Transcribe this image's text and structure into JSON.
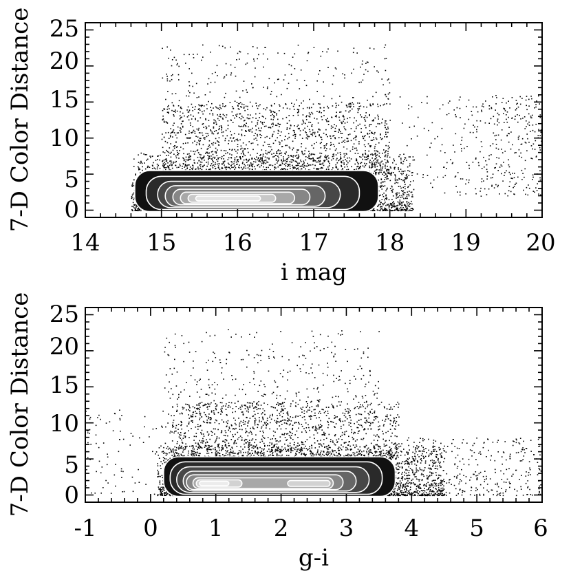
{
  "chart_data": [
    {
      "type": "scatter",
      "title": "",
      "xlabel": "i mag",
      "ylabel": "7-D Color Distance",
      "xlim": [
        14,
        20
      ],
      "ylim": [
        -1,
        26
      ],
      "xticks": [
        "14",
        "15",
        "16",
        "17",
        "18",
        "19",
        "20"
      ],
      "yticks": [
        "0",
        "5",
        "10",
        "15",
        "20",
        "25"
      ],
      "grid": false,
      "overlay": "filled density contours (grey shading, white contour lines)",
      "scatter_regions": [
        {
          "x_range": [
            14.6,
            18.3
          ],
          "y_range": [
            0,
            8
          ],
          "density": "very high"
        },
        {
          "x_range": [
            15.0,
            18.0
          ],
          "y_range": [
            5,
            15
          ],
          "density": "moderate"
        },
        {
          "x_range": [
            15.0,
            18.0
          ],
          "y_range": [
            10,
            23
          ],
          "density": "sparse"
        },
        {
          "x_range": [
            18.0,
            20.0
          ],
          "y_range": [
            2,
            16
          ],
          "density": "sparse, rising toward x=20"
        }
      ],
      "contours": [
        {
          "level": 1,
          "x_range": [
            14.65,
            17.85
          ],
          "y_range": [
            -0.2,
            5.5
          ],
          "shade": "#111111"
        },
        {
          "level": 2,
          "x_range": [
            14.8,
            17.6
          ],
          "y_range": [
            0.1,
            4.7
          ],
          "shade": "#2a2a2a"
        },
        {
          "level": 3,
          "x_range": [
            14.95,
            17.35
          ],
          "y_range": [
            0.35,
            4.0
          ],
          "shade": "#474747"
        },
        {
          "level": 4,
          "x_range": [
            15.05,
            17.15
          ],
          "y_range": [
            0.55,
            3.4
          ],
          "shade": "#666666"
        },
        {
          "level": 5,
          "x_range": [
            15.15,
            16.95
          ],
          "y_range": [
            0.75,
            2.9
          ],
          "shade": "#868686"
        },
        {
          "level": 6,
          "x_range": [
            15.25,
            16.75
          ],
          "y_range": [
            0.9,
            2.5
          ],
          "shade": "#a8a8a8"
        },
        {
          "level": 7,
          "x_range": [
            15.35,
            16.5
          ],
          "y_range": [
            1.1,
            2.2
          ],
          "shade": "#c8c8c8"
        },
        {
          "level": 8,
          "x_range": [
            15.45,
            16.3
          ],
          "y_range": [
            1.3,
            1.95
          ],
          "shade": "#e4e4e4"
        }
      ]
    },
    {
      "type": "scatter",
      "title": "",
      "xlabel": "g-i",
      "ylabel": "7-D Color Distance",
      "xlim": [
        -1,
        6
      ],
      "ylim": [
        -1,
        26
      ],
      "xticks": [
        "-1",
        "0",
        "1",
        "2",
        "3",
        "4",
        "5",
        "6"
      ],
      "yticks": [
        "0",
        "5",
        "10",
        "15",
        "20",
        "25"
      ],
      "grid": false,
      "overlay": "filled density contours (grey shading, white contour lines)",
      "scatter_regions": [
        {
          "x_range": [
            0.1,
            4.5
          ],
          "y_range": [
            0,
            7
          ],
          "density": "very high"
        },
        {
          "x_range": [
            0.3,
            3.8
          ],
          "y_range": [
            5,
            13
          ],
          "density": "moderate"
        },
        {
          "x_range": [
            0.2,
            3.5
          ],
          "y_range": [
            10,
            23
          ],
          "density": "sparse"
        },
        {
          "x_range": [
            3.5,
            6.0
          ],
          "y_range": [
            0,
            8
          ],
          "density": "sparse"
        },
        {
          "x_range": [
            -1.0,
            0.3
          ],
          "y_range": [
            0,
            12
          ],
          "density": "very sparse"
        }
      ],
      "contours": [
        {
          "level": 1,
          "x_range": [
            0.2,
            3.75
          ],
          "y_range": [
            -0.2,
            5.3
          ],
          "shade": "#111111"
        },
        {
          "level": 2,
          "x_range": [
            0.3,
            3.55
          ],
          "y_range": [
            0.1,
            4.6
          ],
          "shade": "#2a2a2a"
        },
        {
          "level": 3,
          "x_range": [
            0.4,
            3.35
          ],
          "y_range": [
            0.35,
            3.9
          ],
          "shade": "#474747"
        },
        {
          "level": 4,
          "x_range": [
            0.5,
            3.15
          ],
          "y_range": [
            0.55,
            3.3
          ],
          "shade": "#666666"
        },
        {
          "level": 5,
          "x_range": [
            0.55,
            2.95
          ],
          "y_range": [
            0.75,
            2.8
          ],
          "shade": "#868686"
        },
        {
          "level": 6,
          "x_range": [
            0.65,
            2.8
          ],
          "y_range": [
            0.9,
            2.4
          ],
          "shade": "#a8a8a8"
        },
        {
          "level": 7,
          "x_range": [
            0.7,
            1.4
          ],
          "y_range": [
            1.1,
            2.1
          ],
          "shade": "#d2d2d2"
        },
        {
          "level": 7,
          "x_range": [
            2.1,
            2.75
          ],
          "y_range": [
            1.2,
            2.0
          ],
          "shade": "#d2d2d2"
        },
        {
          "level": 8,
          "x_range": [
            0.75,
            1.2
          ],
          "y_range": [
            1.3,
            1.9
          ],
          "shade": "#ececec"
        }
      ]
    }
  ]
}
